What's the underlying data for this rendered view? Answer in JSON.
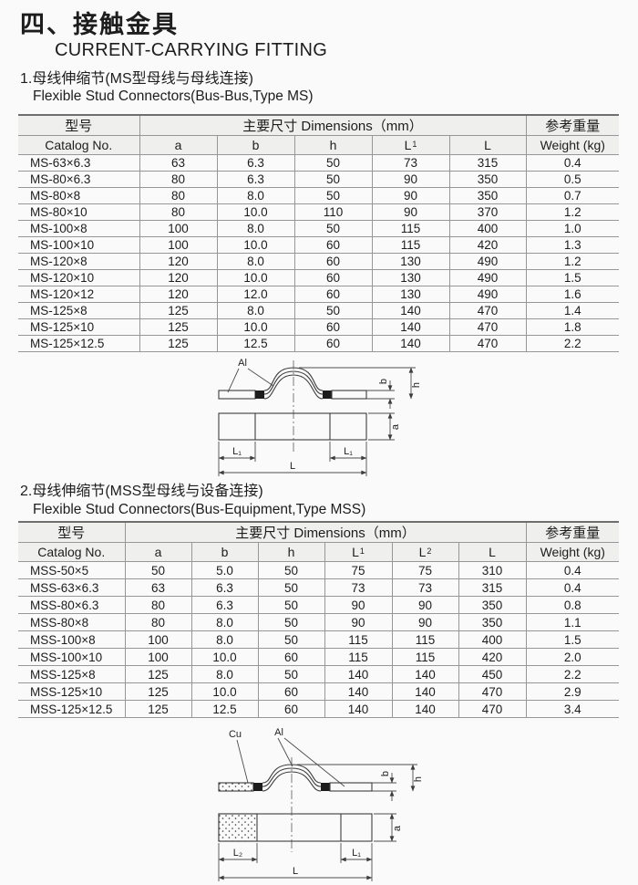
{
  "colors": {
    "paper": "#fafafa",
    "header_fill": "#efefed",
    "table_line": "#979797",
    "ink": "#1d1d1d"
  },
  "page": {
    "title_zh": "四、接触金具",
    "title_en": "CURRENT-CARRYING FITTING"
  },
  "section1": {
    "heading_zh": "1.母线伸缩节(MS型母线与母线连接)",
    "heading_en": "Flexible Stud Connectors(Bus-Bus,Type MS)",
    "table": {
      "model_header_zh": "型号",
      "model_header_en": "Catalog No.",
      "dims_header": "主要尺寸 Dimensions（mm）",
      "weight_header_zh": "参考重量",
      "weight_header_en": "Weight (kg)",
      "dim_cols": [
        {
          "t": "a"
        },
        {
          "t": "b"
        },
        {
          "t": "h"
        },
        {
          "t": "L",
          "s": "1"
        },
        {
          "t": "L"
        }
      ],
      "rows": [
        [
          "MS-63×6.3",
          "63",
          "6.3",
          "50",
          "73",
          "315",
          "0.4"
        ],
        [
          "MS-80×6.3",
          "80",
          "6.3",
          "50",
          "90",
          "350",
          "0.5"
        ],
        [
          "MS-80×8",
          "80",
          "8.0",
          "50",
          "90",
          "350",
          "0.7"
        ],
        [
          "MS-80×10",
          "80",
          "10.0",
          "110",
          "90",
          "370",
          "1.2"
        ],
        [
          "MS-100×8",
          "100",
          "8.0",
          "50",
          "115",
          "400",
          "1.0"
        ],
        [
          "MS-100×10",
          "100",
          "10.0",
          "60",
          "115",
          "420",
          "1.3"
        ],
        [
          "MS-120×8",
          "120",
          "8.0",
          "60",
          "130",
          "490",
          "1.2"
        ],
        [
          "MS-120×10",
          "120",
          "10.0",
          "60",
          "130",
          "490",
          "1.5"
        ],
        [
          "MS-120×12",
          "120",
          "12.0",
          "60",
          "130",
          "490",
          "1.6"
        ],
        [
          "MS-125×8",
          "125",
          "8.0",
          "50",
          "140",
          "470",
          "1.4"
        ],
        [
          "MS-125×10",
          "125",
          "10.0",
          "60",
          "140",
          "470",
          "1.8"
        ],
        [
          "MS-125×12.5",
          "125",
          "12.5",
          "60",
          "140",
          "470",
          "2.2"
        ]
      ]
    },
    "diagram": {
      "al_label": "Al",
      "dim_b": "b",
      "dim_h": "h",
      "dim_a": "a",
      "dim_l1_left": "L₁",
      "dim_l1_right": "L₁",
      "dim_l": "L"
    }
  },
  "section2": {
    "heading_zh": "2.母线伸缩节(MSS型母线与设备连接)",
    "heading_en": "Flexible Stud Connectors(Bus-Equipment,Type MSS)",
    "table": {
      "model_header_zh": "型号",
      "model_header_en": "Catalog No.",
      "dims_header": "主要尺寸 Dimensions（mm）",
      "weight_header_zh": "参考重量",
      "weight_header_en": "Weight (kg)",
      "dim_cols": [
        {
          "t": "a"
        },
        {
          "t": "b"
        },
        {
          "t": "h"
        },
        {
          "t": "L",
          "s": "1"
        },
        {
          "t": "L",
          "s": "2"
        },
        {
          "t": "L"
        }
      ],
      "rows": [
        [
          "MSS-50×5",
          "50",
          "5.0",
          "50",
          "75",
          "75",
          "310",
          "0.4"
        ],
        [
          "MSS-63×6.3",
          "63",
          "6.3",
          "50",
          "73",
          "73",
          "315",
          "0.4"
        ],
        [
          "MSS-80×6.3",
          "80",
          "6.3",
          "50",
          "90",
          "90",
          "350",
          "0.8"
        ],
        [
          "MSS-80×8",
          "80",
          "8.0",
          "50",
          "90",
          "90",
          "350",
          "1.1"
        ],
        [
          "MSS-100×8",
          "100",
          "8.0",
          "50",
          "115",
          "115",
          "400",
          "1.5"
        ],
        [
          "MSS-100×10",
          "100",
          "10.0",
          "60",
          "115",
          "115",
          "420",
          "2.0"
        ],
        [
          "MSS-125×8",
          "125",
          "8.0",
          "50",
          "140",
          "140",
          "450",
          "2.2"
        ],
        [
          "MSS-125×10",
          "125",
          "10.0",
          "60",
          "140",
          "140",
          "470",
          "2.9"
        ],
        [
          "MSS-125×12.5",
          "125",
          "12.5",
          "60",
          "140",
          "140",
          "470",
          "3.4"
        ]
      ]
    },
    "diagram": {
      "cu_label": "Cu",
      "al_label": "Al",
      "dim_b": "b",
      "dim_h": "h",
      "dim_a": "a",
      "dim_l2": "L₂",
      "dim_l1": "L₁",
      "dim_l": "L"
    }
  }
}
